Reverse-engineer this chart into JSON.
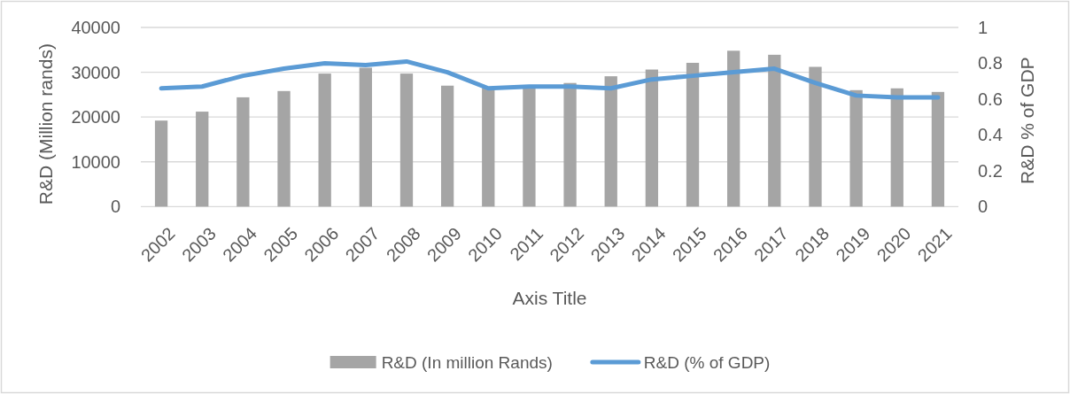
{
  "chart_data": {
    "type": "bar",
    "xlabel": "Axis Title",
    "ylabel": "R&D (Million rands)",
    "y2label": "R&D % of GDP",
    "categories": [
      "2002",
      "2003",
      "2004",
      "2005",
      "2006",
      "2007",
      "2008",
      "2009",
      "2010",
      "2011",
      "2012",
      "2013",
      "2014",
      "2015",
      "2016",
      "2017",
      "2018",
      "2019",
      "2020",
      "2021"
    ],
    "series": [
      {
        "name": "R&D (In million Rands)",
        "color": "#a5a5a5",
        "values": [
          19200,
          21200,
          24400,
          25800,
          29700,
          31000,
          29700,
          27000,
          26500,
          26900,
          27600,
          29100,
          30600,
          32100,
          34800,
          33900,
          31200,
          26000,
          26400,
          25600
        ]
      },
      {
        "name": "R&D (% of GDP)",
        "type": "line",
        "axis": "y2",
        "color": "#5b9bd5",
        "values": [
          0.66,
          0.67,
          0.73,
          0.77,
          0.8,
          0.79,
          0.81,
          0.75,
          0.66,
          0.67,
          0.67,
          0.66,
          0.71,
          0.73,
          0.75,
          0.77,
          0.69,
          0.62,
          0.61,
          0.61
        ]
      }
    ],
    "ylim": [
      0,
      40000
    ],
    "yticks": [
      0,
      10000,
      20000,
      30000,
      40000
    ],
    "y2lim": [
      0,
      1
    ],
    "y2ticks": [
      0,
      0.2,
      0.4,
      0.6,
      0.8,
      1
    ],
    "grid": "y",
    "legend": "bottom"
  }
}
